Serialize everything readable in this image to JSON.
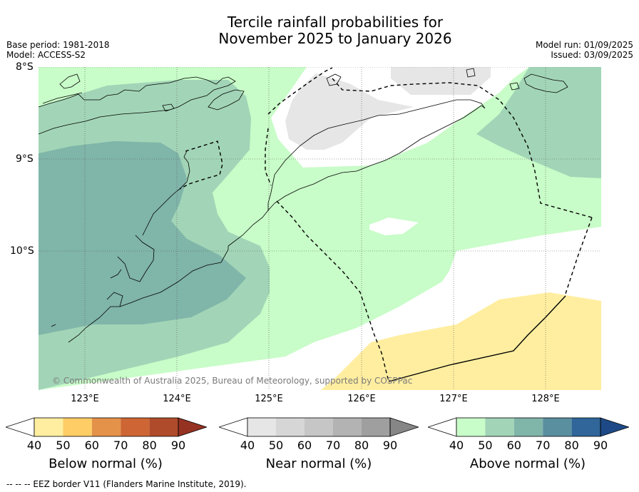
{
  "title": {
    "line1": "Tercile rainfall probabilities for",
    "line2": "November 2025 to January 2026"
  },
  "meta": {
    "base_period": "Base period: 1981-2018",
    "model": "Model: ACCESS-S2",
    "model_run": "Model run: 01/09/2025",
    "issued": "Issued: 03/09/2025"
  },
  "axes": {
    "lat_labels": [
      "8°S",
      "9°S",
      "10°S"
    ],
    "lon_labels": [
      "123°E",
      "124°E",
      "125°E",
      "126°E",
      "127°E",
      "128°E"
    ]
  },
  "copyright": "© Commonwealth of Australia 2025, Bureau of Meteorology, supported by COSPPac",
  "colorbars": [
    {
      "title": "Below normal (%)",
      "ticks": [
        "40",
        "50",
        "60",
        "70",
        "80",
        "90"
      ],
      "colors": [
        "#ffffff",
        "#ffeea0",
        "#fecd66",
        "#e4924a",
        "#cd6634",
        "#af4b2b",
        "#953222"
      ]
    },
    {
      "title": "Near normal (%)",
      "ticks": [
        "40",
        "50",
        "60",
        "70",
        "80",
        "90"
      ],
      "colors": [
        "#ffffff",
        "#e6e6e6",
        "#d6d6d6",
        "#c6c6c6",
        "#b3b3b3",
        "#9f9f9f",
        "#868686"
      ]
    },
    {
      "title": "Above normal (%)",
      "ticks": [
        "40",
        "50",
        "60",
        "70",
        "80",
        "90"
      ],
      "colors": [
        "#ffffff",
        "#c8fcc8",
        "#a2d5b7",
        "#80b5a9",
        "#5a8fa0",
        "#306699",
        "#1d4a86"
      ]
    }
  ],
  "legend_footer": "--  --  -- EEZ border V11 (Flanders Marine Institute, 2019)."
}
